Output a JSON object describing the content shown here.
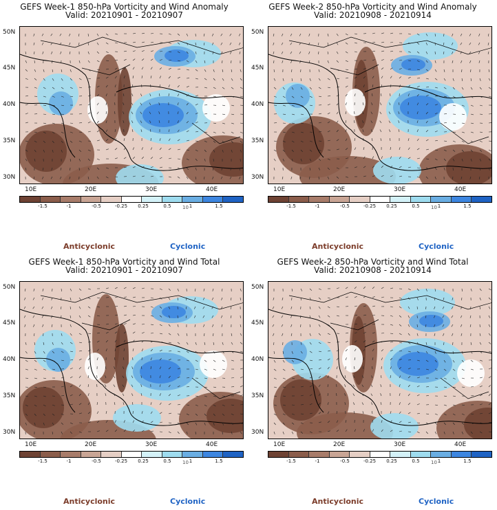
{
  "panels": [
    {
      "title": "GEFS Week-1 850-hPa Vorticity and Wind Anomaly",
      "valid": "Valid: 20210901 - 20210907"
    },
    {
      "title": "GEFS Week-2 850-hPa Vorticity and Wind Anomaly",
      "valid": "Valid: 20210908 - 20210914"
    },
    {
      "title": "GEFS Week-1 850-hPa Vorticity and Wind Total",
      "valid": "Valid: 20210901 - 20210907"
    },
    {
      "title": "GEFS Week-2 850-hPa Vorticity and Wind Total",
      "valid": "Valid: 20210908 - 20210914"
    }
  ],
  "lat_labels": [
    "50N",
    "45N",
    "40N",
    "35N",
    "30N"
  ],
  "lon_labels": [
    "10E",
    "20E",
    "30E",
    "40E"
  ],
  "colorbar": {
    "ticks": [
      "-1.5",
      "-1",
      "-0.5",
      "-0.25",
      "0.25",
      "0.5",
      "1",
      "1.5"
    ],
    "colors": [
      "#6e4233",
      "#8b5d4b",
      "#a87c6a",
      "#c9a595",
      "#e6cfc5",
      "#ffffff",
      "#d4f2f8",
      "#9edcef",
      "#6aaee3",
      "#3d86e0",
      "#1f63c4"
    ],
    "unit": "10"
  },
  "legend": {
    "anticyclonic": "Anticyclonic",
    "cyclonic": "Cyclonic"
  },
  "colors": {
    "anticyclonic": "#7b3c2a",
    "cyclonic": "#1f63c4"
  }
}
